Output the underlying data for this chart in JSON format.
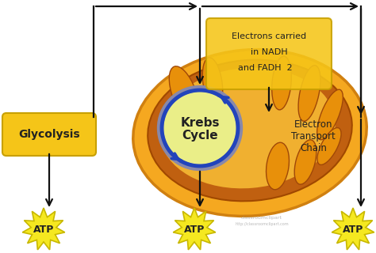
{
  "bg_color": "#ffffff",
  "mito_outer_color": "#F5A820",
  "mito_inner_color": "#C86010",
  "mito_matrix_color": "#F0B830",
  "cristae_color": "#C86010",
  "krebs_fill": "#E8EE80",
  "krebs_ring": "#2244BB",
  "arrow_color": "#111111",
  "glyc_box_color": "#F5C518",
  "elec_box_color": "#F5C518",
  "atp_color": "#F5E820",
  "atp_edge": "#C8B800",
  "text_dark": "#222222",
  "text_label": "#333333",
  "glyc_text": "Glycolysis",
  "krebs_text1": "Krebs",
  "krebs_text2": "Cycle",
  "elec_line1": "Electrons carried",
  "elec_line2": "in NADH",
  "elec_line3": "and FADH  2",
  "etc_text": "Electron\nTransport\nChain",
  "atp_label": "ATP",
  "watermark1": "classroomclipart",
  "watermark2": "http://classroomclipart.com"
}
